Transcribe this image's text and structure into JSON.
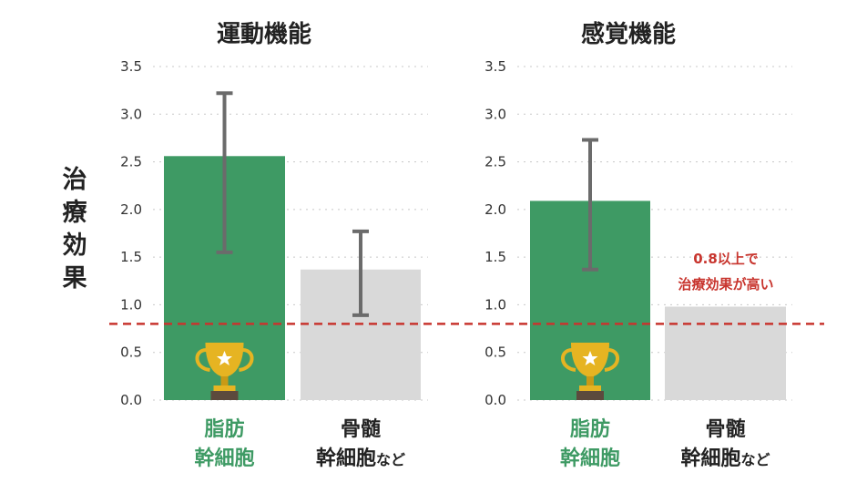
{
  "y_axis_label": "治療効果",
  "colors": {
    "adipose": "#3e9a64",
    "bone_marrow": "#d9d9d9",
    "error_bar": "#6b6b6b",
    "threshold": "#c8352e",
    "grid": "#c8c8c8",
    "trophy": "#e6b422"
  },
  "icons": [
    "trophy-icon"
  ],
  "categories": [
    {
      "line1": "脂肪",
      "line2": "幹細胞",
      "suffix": ""
    },
    {
      "line1": "骨髄",
      "line2": "幹細胞",
      "suffix": "など"
    }
  ],
  "threshold": {
    "value": 0.8,
    "label_line1": "0.8以上で",
    "label_line2": "治療効果が高い"
  },
  "chart_data": [
    {
      "type": "bar",
      "title": "運動機能",
      "ylim": [
        0,
        3.5
      ],
      "yticks": [
        "0.0",
        "0.5",
        "1.0",
        "1.5",
        "2.0",
        "2.5",
        "3.0",
        "3.5"
      ],
      "values": [
        2.56,
        1.37
      ],
      "error_low": [
        1.55,
        0.89
      ],
      "error_high": [
        3.22,
        1.77
      ],
      "winner_index": 0,
      "grid": true
    },
    {
      "type": "bar",
      "title": "感覚機能",
      "ylim": [
        0,
        3.5
      ],
      "yticks": [
        "0.0",
        "0.5",
        "1.0",
        "1.5",
        "2.0",
        "2.5",
        "3.0",
        "3.5"
      ],
      "values": [
        2.09,
        0.98
      ],
      "error_low": [
        1.37,
        null
      ],
      "error_high": [
        2.73,
        null
      ],
      "winner_index": 0,
      "grid": true
    }
  ]
}
